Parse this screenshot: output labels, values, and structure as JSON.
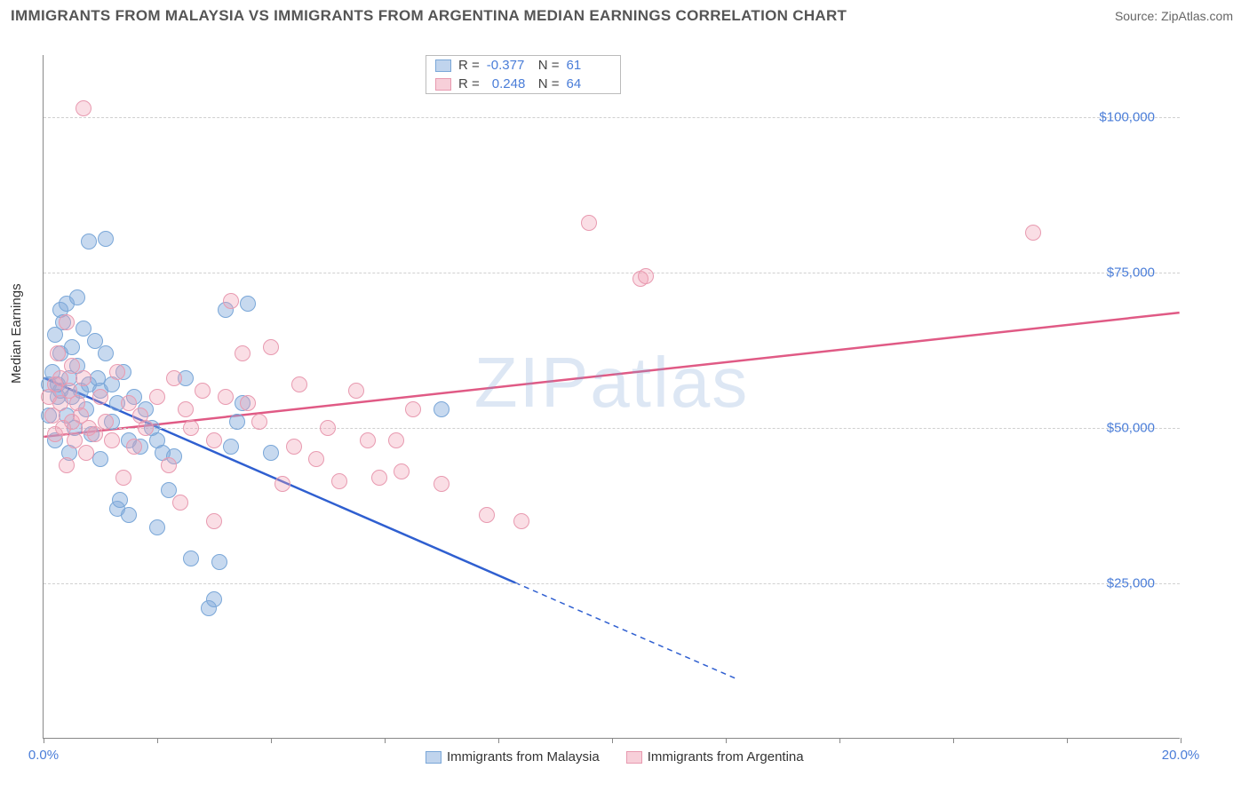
{
  "header": {
    "title": "IMMIGRANTS FROM MALAYSIA VS IMMIGRANTS FROM ARGENTINA MEDIAN EARNINGS CORRELATION CHART",
    "source_prefix": "Source: ",
    "source_name": "ZipAtlas.com"
  },
  "ylabel": "Median Earnings",
  "watermark_a": "ZIP",
  "watermark_b": "atlas",
  "chart": {
    "type": "scatter",
    "xlim": [
      0,
      20
    ],
    "ylim": [
      0,
      110000
    ],
    "x_tick_step": 2,
    "y_grid": [
      25000,
      50000,
      75000,
      100000
    ],
    "y_tick_labels": [
      "$25,000",
      "$50,000",
      "$75,000",
      "$100,000"
    ],
    "x_end_labels": [
      "0.0%",
      "20.0%"
    ],
    "background_color": "#ffffff",
    "grid_color": "#d0d0d0",
    "axis_color": "#888888",
    "label_color": "#4a7dd8",
    "point_radius": 9,
    "series": [
      {
        "name": "Immigrants from Malaysia",
        "color_fill": "rgba(130,170,220,0.45)",
        "color_stroke": "#7aa7d8",
        "line_color": "#2f5fd0",
        "R": "-0.377",
        "N": "61",
        "trend": {
          "x1": 0,
          "y1": 58000,
          "x2": 8.3,
          "y2": 25000,
          "dash_x2": 12.2,
          "dash_y2": 9500
        },
        "points": [
          [
            0.1,
            57000
          ],
          [
            0.1,
            52000
          ],
          [
            0.15,
            59000
          ],
          [
            0.2,
            48000
          ],
          [
            0.2,
            65000
          ],
          [
            0.25,
            55000
          ],
          [
            0.25,
            57000
          ],
          [
            0.3,
            69000
          ],
          [
            0.3,
            62000
          ],
          [
            0.3,
            56000
          ],
          [
            0.35,
            67000
          ],
          [
            0.4,
            70000
          ],
          [
            0.4,
            52000
          ],
          [
            0.45,
            58000
          ],
          [
            0.45,
            46000
          ],
          [
            0.5,
            63000
          ],
          [
            0.5,
            55000
          ],
          [
            0.55,
            50000
          ],
          [
            0.6,
            71000
          ],
          [
            0.6,
            60000
          ],
          [
            0.65,
            56000
          ],
          [
            0.7,
            66000
          ],
          [
            0.75,
            53000
          ],
          [
            0.8,
            80000
          ],
          [
            0.8,
            57000
          ],
          [
            0.85,
            49000
          ],
          [
            0.9,
            64000
          ],
          [
            0.95,
            58000
          ],
          [
            1.0,
            56000
          ],
          [
            1.0,
            45000
          ],
          [
            1.1,
            62000
          ],
          [
            1.1,
            80500
          ],
          [
            1.2,
            51000
          ],
          [
            1.2,
            57000
          ],
          [
            1.3,
            54000
          ],
          [
            1.3,
            37000
          ],
          [
            1.35,
            38500
          ],
          [
            1.4,
            59000
          ],
          [
            1.5,
            36000
          ],
          [
            1.5,
            48000
          ],
          [
            1.6,
            55000
          ],
          [
            1.7,
            47000
          ],
          [
            1.8,
            53000
          ],
          [
            1.9,
            50000
          ],
          [
            2.0,
            34000
          ],
          [
            2.0,
            48000
          ],
          [
            2.1,
            46000
          ],
          [
            2.2,
            40000
          ],
          [
            2.3,
            45500
          ],
          [
            2.5,
            58000
          ],
          [
            2.6,
            29000
          ],
          [
            2.9,
            21000
          ],
          [
            3.0,
            22500
          ],
          [
            3.1,
            28500
          ],
          [
            3.2,
            69000
          ],
          [
            3.3,
            47000
          ],
          [
            3.4,
            51000
          ],
          [
            3.5,
            54000
          ],
          [
            3.6,
            70000
          ],
          [
            4.0,
            46000
          ],
          [
            7.0,
            53000
          ]
        ]
      },
      {
        "name": "Immigrants from Argentina",
        "color_fill": "rgba(240,160,180,0.35)",
        "color_stroke": "#e89ab0",
        "line_color": "#e05a85",
        "R": "0.248",
        "N": "64",
        "trend": {
          "x1": 0,
          "y1": 48500,
          "x2": 20,
          "y2": 68500
        },
        "points": [
          [
            0.1,
            55000
          ],
          [
            0.15,
            52000
          ],
          [
            0.2,
            57000
          ],
          [
            0.2,
            49000
          ],
          [
            0.25,
            62000
          ],
          [
            0.3,
            54000
          ],
          [
            0.3,
            58000
          ],
          [
            0.35,
            50000
          ],
          [
            0.4,
            67000
          ],
          [
            0.4,
            44000
          ],
          [
            0.45,
            56000
          ],
          [
            0.5,
            51000
          ],
          [
            0.5,
            60000
          ],
          [
            0.55,
            48000
          ],
          [
            0.6,
            54000
          ],
          [
            0.65,
            52000
          ],
          [
            0.7,
            58000
          ],
          [
            0.75,
            46000
          ],
          [
            0.8,
            50000
          ],
          [
            0.7,
            101500
          ],
          [
            0.9,
            49000
          ],
          [
            1.0,
            55000
          ],
          [
            1.1,
            51000
          ],
          [
            1.2,
            48000
          ],
          [
            1.3,
            59000
          ],
          [
            1.4,
            42000
          ],
          [
            1.5,
            54000
          ],
          [
            1.6,
            47000
          ],
          [
            1.7,
            52000
          ],
          [
            1.8,
            50000
          ],
          [
            2.0,
            55000
          ],
          [
            2.2,
            44000
          ],
          [
            2.3,
            58000
          ],
          [
            2.4,
            38000
          ],
          [
            2.5,
            53000
          ],
          [
            2.6,
            50000
          ],
          [
            2.8,
            56000
          ],
          [
            3.0,
            48000
          ],
          [
            3.0,
            35000
          ],
          [
            3.2,
            55000
          ],
          [
            3.3,
            70500
          ],
          [
            3.5,
            62000
          ],
          [
            3.6,
            54000
          ],
          [
            3.8,
            51000
          ],
          [
            4.0,
            63000
          ],
          [
            4.2,
            41000
          ],
          [
            4.4,
            47000
          ],
          [
            4.5,
            57000
          ],
          [
            4.8,
            45000
          ],
          [
            5.0,
            50000
          ],
          [
            5.2,
            41500
          ],
          [
            5.5,
            56000
          ],
          [
            5.7,
            48000
          ],
          [
            5.9,
            42000
          ],
          [
            6.2,
            48000
          ],
          [
            6.3,
            43000
          ],
          [
            6.5,
            53000
          ],
          [
            7.0,
            41000
          ],
          [
            7.8,
            36000
          ],
          [
            8.4,
            35000
          ],
          [
            9.6,
            83000
          ],
          [
            10.5,
            74000
          ],
          [
            10.6,
            74500
          ],
          [
            17.4,
            81500
          ]
        ]
      }
    ]
  },
  "bottom_legend": {
    "items": [
      "Immigrants from Malaysia",
      "Immigrants from Argentina"
    ]
  }
}
